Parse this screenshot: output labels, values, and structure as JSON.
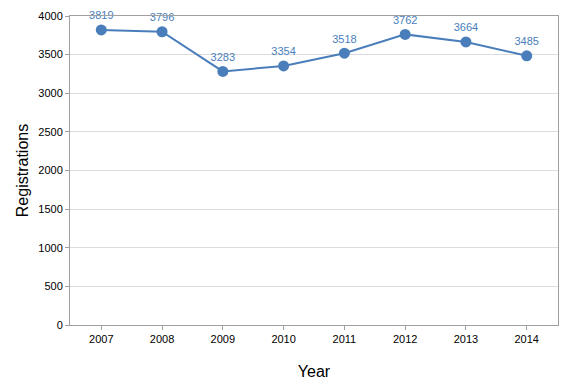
{
  "chart_data": {
    "type": "line",
    "x_label": "Year",
    "y_label": "Registrations",
    "categories": [
      "2007",
      "2008",
      "2009",
      "2010",
      "2011",
      "2012",
      "2013",
      "2014"
    ],
    "values": [
      3819,
      3796,
      3283,
      3354,
      3518,
      3762,
      3664,
      3485
    ],
    "color": "#4a7ebb",
    "marker": "circle",
    "ylim": [
      0,
      4000
    ],
    "yticks": [
      0,
      500,
      1000,
      1500,
      2000,
      2500,
      3000,
      3500,
      4000
    ],
    "grid": true,
    "data_labels": true
  }
}
